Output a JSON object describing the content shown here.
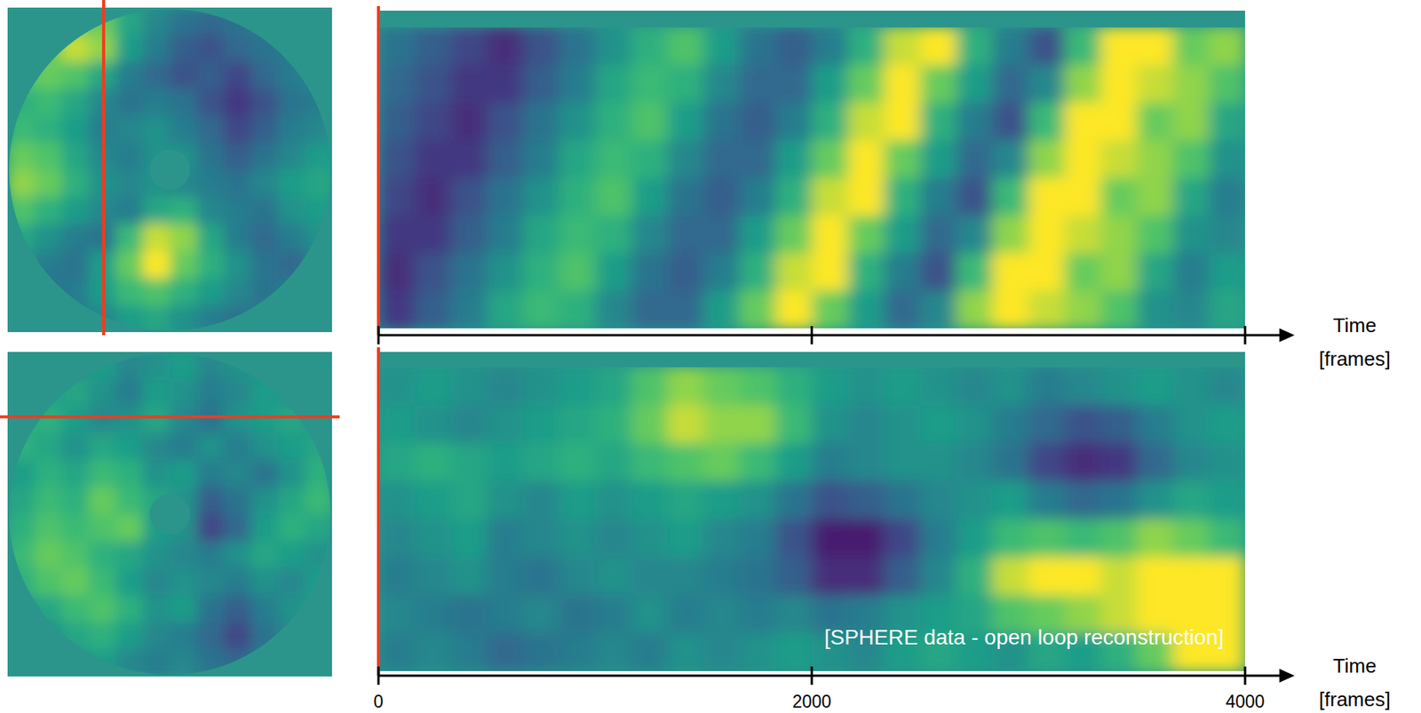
{
  "chart_data": [
    {
      "type": "heatmap",
      "tick_labels": false,
      "color_range": [
        -1.2,
        0.9
      ],
      "z": [
        [
          null,
          null,
          0.5,
          0.6,
          0.2,
          -0.1,
          -0.3,
          -0.4,
          -0.3,
          -0.2,
          null,
          null
        ],
        [
          null,
          0.6,
          0.8,
          0.7,
          0.1,
          -0.2,
          -0.5,
          -0.6,
          -0.4,
          -0.3,
          -0.2,
          null
        ],
        [
          0.5,
          0.6,
          0.5,
          0.2,
          -0.2,
          -0.4,
          -0.6,
          -0.5,
          -0.7,
          -0.4,
          -0.2,
          -0.1
        ],
        [
          0.3,
          0.4,
          0.2,
          -0.1,
          -0.3,
          -0.2,
          -0.3,
          -0.6,
          -0.8,
          -0.6,
          -0.3,
          -0.2
        ],
        [
          0.4,
          0.3,
          0.1,
          -0.2,
          -0.1,
          0.0,
          -0.2,
          -0.4,
          -0.7,
          -0.5,
          -0.2,
          -0.1
        ],
        [
          0.6,
          0.5,
          0.2,
          -0.1,
          -0.2,
          0.0,
          0.0,
          -0.3,
          -0.5,
          -0.3,
          -0.1,
          0.1
        ],
        [
          0.7,
          0.6,
          0.3,
          0.0,
          -0.1,
          0.0,
          -0.1,
          -0.2,
          -0.3,
          -0.1,
          0.1,
          0.2
        ],
        [
          0.5,
          0.3,
          0.1,
          -0.1,
          -0.2,
          0.2,
          0.3,
          -0.1,
          -0.2,
          -0.3,
          0.0,
          0.1
        ],
        [
          0.2,
          0.0,
          -0.2,
          -0.3,
          0.4,
          0.8,
          0.7,
          0.2,
          -0.2,
          -0.4,
          -0.2,
          0.0
        ],
        [
          0.0,
          -0.2,
          -0.3,
          0.1,
          0.6,
          0.9,
          0.6,
          0.3,
          0.0,
          -0.3,
          -0.4,
          -0.2
        ],
        [
          null,
          -0.3,
          -0.2,
          0.1,
          0.4,
          0.5,
          0.3,
          0.1,
          -0.1,
          -0.3,
          -0.2,
          null
        ],
        [
          null,
          null,
          -0.2,
          -0.1,
          0.1,
          0.2,
          0.0,
          -0.2,
          -0.3,
          -0.2,
          null,
          null
        ]
      ]
    },
    {
      "type": "heatmap",
      "tick_labels": false,
      "color_range": [
        -1.2,
        0.9
      ],
      "z": [
        [
          null,
          null,
          0.0,
          0.1,
          -0.1,
          0.0,
          0.1,
          -0.1,
          0.0,
          0.0,
          null,
          null
        ],
        [
          null,
          0.1,
          0.2,
          0.0,
          -0.2,
          0.1,
          0.0,
          -0.2,
          -0.1,
          0.1,
          0.0,
          null
        ],
        [
          0.2,
          0.3,
          0.1,
          -0.1,
          0.0,
          0.2,
          -0.1,
          -0.3,
          0.0,
          0.1,
          0.2,
          0.0
        ],
        [
          0.3,
          0.2,
          0.0,
          0.2,
          0.1,
          -0.1,
          -0.2,
          0.0,
          -0.2,
          0.0,
          0.1,
          0.2
        ],
        [
          0.1,
          0.3,
          0.2,
          0.4,
          0.3,
          0.0,
          0.1,
          -0.2,
          -0.1,
          -0.3,
          0.0,
          0.3
        ],
        [
          0.2,
          0.4,
          0.3,
          0.6,
          0.4,
          0.2,
          0.0,
          -0.5,
          -0.3,
          0.0,
          0.2,
          0.4
        ],
        [
          0.3,
          0.5,
          0.4,
          0.5,
          0.6,
          0.1,
          0.0,
          -0.7,
          -0.4,
          0.1,
          0.3,
          0.2
        ],
        [
          0.4,
          0.6,
          0.5,
          0.3,
          0.2,
          0.0,
          -0.1,
          -0.2,
          0.0,
          0.2,
          0.1,
          0.0
        ],
        [
          0.3,
          0.5,
          0.6,
          0.4,
          0.1,
          -0.1,
          0.0,
          -0.1,
          -0.2,
          0.0,
          -0.1,
          0.1
        ],
        [
          0.1,
          0.2,
          0.4,
          0.5,
          0.3,
          0.0,
          0.1,
          -0.3,
          -0.5,
          -0.2,
          0.0,
          0.1
        ],
        [
          null,
          0.0,
          0.2,
          0.3,
          0.1,
          -0.1,
          -0.2,
          -0.4,
          -0.7,
          -0.3,
          -0.1,
          null
        ],
        [
          null,
          null,
          0.0,
          0.1,
          -0.1,
          -0.2,
          -0.1,
          -0.3,
          -0.4,
          -0.2,
          null,
          null
        ]
      ]
    },
    {
      "type": "heatmap",
      "tick_labels": false,
      "color_range": [
        -1.2,
        0.9
      ],
      "xlabel": "Time [frames]",
      "xlim": [
        0,
        4000
      ],
      "xticks": [
        0,
        2000,
        4000
      ],
      "x_edges": [
        0,
        166.7,
        333.3,
        500,
        666.7,
        833.3,
        1000,
        1166.7,
        1333.3,
        1500,
        1666.7,
        1833.3,
        2000,
        2166.7,
        2333.3,
        2500,
        2666.7,
        2833.3,
        3000,
        3166.7,
        3333.3,
        3500,
        3666.7,
        3833.3,
        4000
      ],
      "z": [
        [
          -0.3,
          -0.5,
          -0.7,
          -0.9,
          -0.6,
          -0.3,
          0.0,
          0.3,
          0.5,
          0.1,
          -0.3,
          -0.5,
          -0.2,
          0.3,
          0.8,
          0.9,
          0.3,
          -0.2,
          -0.6,
          0.4,
          0.9,
          1.0,
          0.6,
          0.7
        ],
        [
          -0.4,
          -0.6,
          -0.8,
          -0.8,
          -0.5,
          -0.2,
          0.2,
          0.4,
          0.3,
          -0.1,
          -0.4,
          -0.4,
          0.1,
          0.6,
          0.9,
          0.6,
          0.1,
          -0.4,
          -0.1,
          0.7,
          1.0,
          0.8,
          0.7,
          0.5
        ],
        [
          -0.5,
          -0.7,
          -0.9,
          -0.6,
          -0.3,
          0.0,
          0.3,
          0.5,
          0.1,
          -0.3,
          -0.5,
          -0.2,
          0.3,
          0.8,
          0.9,
          0.3,
          -0.2,
          -0.6,
          0.4,
          0.9,
          1.0,
          0.6,
          0.7,
          0.2
        ],
        [
          -0.6,
          -0.8,
          -0.8,
          -0.5,
          -0.2,
          0.2,
          0.4,
          0.3,
          -0.1,
          -0.4,
          -0.4,
          0.1,
          0.6,
          0.9,
          0.6,
          0.1,
          -0.4,
          -0.1,
          0.7,
          1.0,
          0.8,
          0.7,
          0.5,
          0.0
        ],
        [
          -0.7,
          -0.9,
          -0.6,
          -0.3,
          0.0,
          0.3,
          0.5,
          0.1,
          -0.3,
          -0.5,
          -0.2,
          0.3,
          0.8,
          0.9,
          0.3,
          -0.2,
          -0.6,
          0.4,
          0.9,
          1.0,
          0.6,
          0.7,
          0.2,
          -0.2
        ],
        [
          -0.8,
          -0.8,
          -0.5,
          -0.2,
          0.2,
          0.4,
          0.3,
          -0.1,
          -0.4,
          -0.4,
          0.1,
          0.6,
          0.9,
          0.6,
          0.1,
          -0.4,
          -0.1,
          0.7,
          1.0,
          0.8,
          0.7,
          0.5,
          0.0,
          -0.1
        ],
        [
          -0.9,
          -0.6,
          -0.3,
          0.0,
          0.3,
          0.5,
          0.1,
          -0.3,
          -0.5,
          -0.2,
          0.3,
          0.8,
          0.9,
          0.3,
          -0.2,
          -0.6,
          0.4,
          0.9,
          1.0,
          0.6,
          0.7,
          0.2,
          -0.2,
          0.1
        ],
        [
          -0.8,
          -0.5,
          -0.2,
          0.2,
          0.4,
          0.3,
          -0.1,
          -0.4,
          -0.4,
          0.1,
          0.6,
          0.9,
          0.6,
          0.1,
          -0.4,
          -0.1,
          0.7,
          1.0,
          0.8,
          0.7,
          0.5,
          0.0,
          -0.1,
          0.2
        ]
      ]
    },
    {
      "type": "heatmap",
      "tick_labels": "x",
      "color_range": [
        -1.2,
        0.9
      ],
      "xlabel": "Time [frames]",
      "xlim": [
        0,
        4000
      ],
      "xticks": [
        0,
        2000,
        4000
      ],
      "annotation": "[SPHERE data - open loop reconstruction]",
      "x_edges": [
        0,
        166.7,
        333.3,
        500,
        666.7,
        833.3,
        1000,
        1166.7,
        1333.3,
        1500,
        1666.7,
        1833.3,
        2000,
        2166.7,
        2333.3,
        2500,
        2666.7,
        2833.3,
        3000,
        3166.7,
        3333.3,
        3500,
        3666.7,
        3833.3,
        4000
      ],
      "z": [
        [
          0.0,
          0.1,
          0.0,
          -0.1,
          0.0,
          0.1,
          0.2,
          0.5,
          0.7,
          0.6,
          0.5,
          0.3,
          0.1,
          0.0,
          0.1,
          0.0,
          -0.1,
          0.0,
          -0.2,
          -0.1,
          0.0,
          0.1,
          0.0,
          -0.1
        ],
        [
          0.1,
          0.0,
          -0.1,
          0.0,
          0.1,
          0.2,
          0.3,
          0.6,
          0.8,
          0.7,
          0.7,
          0.4,
          0.0,
          -0.1,
          0.0,
          0.1,
          0.0,
          -0.2,
          -0.4,
          -0.6,
          -0.5,
          -0.2,
          0.0,
          0.1
        ],
        [
          0.2,
          0.3,
          0.2,
          0.1,
          0.2,
          0.3,
          0.2,
          0.4,
          0.5,
          0.6,
          0.4,
          0.1,
          -0.2,
          -0.1,
          0.0,
          0.0,
          -0.1,
          -0.3,
          -0.7,
          -0.9,
          -0.8,
          -0.4,
          -0.1,
          0.0
        ],
        [
          0.0,
          0.1,
          0.2,
          0.0,
          -0.1,
          0.1,
          0.0,
          0.1,
          0.2,
          0.1,
          0.0,
          -0.3,
          -0.6,
          -0.5,
          -0.3,
          -0.1,
          0.0,
          0.1,
          -0.2,
          -0.4,
          -0.3,
          0.0,
          0.2,
          0.1
        ],
        [
          -0.1,
          0.0,
          0.1,
          -0.2,
          -0.1,
          0.0,
          -0.1,
          0.0,
          0.1,
          -0.1,
          -0.2,
          -0.6,
          -1.0,
          -1.0,
          -0.7,
          -0.2,
          0.1,
          0.4,
          0.5,
          0.4,
          0.5,
          0.7,
          0.6,
          0.4
        ],
        [
          -0.2,
          -0.1,
          0.0,
          -0.2,
          -0.3,
          -0.1,
          0.0,
          -0.1,
          -0.1,
          -0.2,
          -0.3,
          -0.5,
          -0.9,
          -0.9,
          -0.5,
          -0.1,
          0.3,
          0.8,
          0.9,
          0.9,
          0.8,
          0.9,
          1.0,
          1.0
        ],
        [
          -0.1,
          -0.2,
          -0.3,
          -0.2,
          -0.1,
          -0.3,
          -0.2,
          0.0,
          -0.2,
          -0.1,
          -0.2,
          -0.1,
          -0.3,
          -0.2,
          0.0,
          0.1,
          0.2,
          0.5,
          0.6,
          0.7,
          0.8,
          1.0,
          1.0,
          1.0
        ],
        [
          -0.2,
          -0.1,
          -0.2,
          -0.4,
          -0.3,
          -0.2,
          -0.1,
          -0.2,
          0.0,
          -0.1,
          0.0,
          0.1,
          0.0,
          -0.1,
          0.1,
          0.2,
          0.1,
          0.0,
          0.2,
          0.1,
          0.3,
          0.6,
          0.9,
          1.0
        ]
      ]
    }
  ]
}
